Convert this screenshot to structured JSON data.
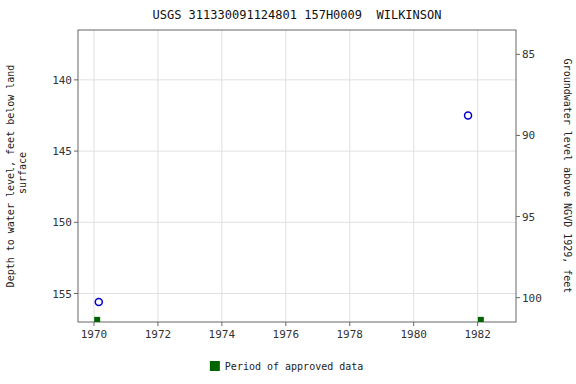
{
  "chart_data": {
    "type": "scatter",
    "title": "USGS 311330091124801 157H0009  WILKINSON",
    "ylabel": "Depth to water level, feet below land\n surface",
    "y2label": "Groundwater level above NGVD 1929, feet",
    "xlim": [
      1969.5,
      1983.2
    ],
    "xticks": [
      1970,
      1972,
      1974,
      1976,
      1978,
      1980,
      1982
    ],
    "ylim": [
      157.0,
      136.5
    ],
    "yticks": [
      140,
      145,
      150,
      155
    ],
    "y2lim": [
      101.5,
      83.5
    ],
    "y2ticks": [
      100,
      95,
      90,
      85
    ],
    "grid": true,
    "legend": "bottom",
    "series": [
      {
        "x": [
          1970.15,
          1981.7
        ],
        "values": [
          155.6,
          142.5
        ],
        "color": "#0000cc",
        "marker": "circle"
      },
      {
        "name": "Period of approved data",
        "x": [
          1970.1,
          1982.1
        ],
        "values": [
          156.85,
          156.85
        ],
        "color": "#006400",
        "marker": "square"
      }
    ]
  }
}
